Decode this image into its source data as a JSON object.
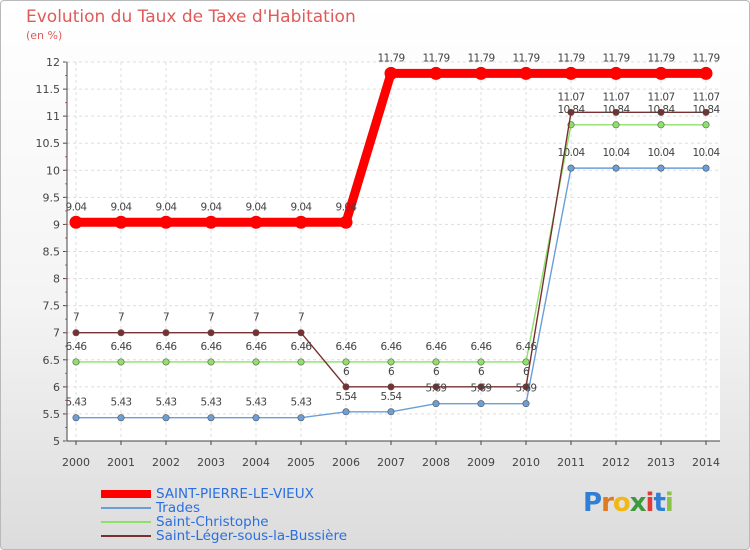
{
  "chart_data": {
    "type": "line",
    "title": "Evolution du Taux de Taxe d'Habitation",
    "subtitle": "(en %)",
    "xlabel": "",
    "ylabel": "",
    "ylim": [
      5,
      12
    ],
    "yticks": [
      "5",
      "5.5",
      "6",
      "6.5",
      "7",
      "7.5",
      "8",
      "8.5",
      "9",
      "9.5",
      "10",
      "10.5",
      "11",
      "11.5",
      "12"
    ],
    "categories": [
      "2000",
      "2001",
      "2002",
      "2003",
      "2004",
      "2005",
      "2006",
      "2007",
      "2008",
      "2009",
      "2010",
      "2011",
      "2012",
      "2013",
      "2014"
    ],
    "grid": true,
    "series": [
      {
        "name": "SAINT-PIERRE-LE-VIEUX",
        "color": "#ff0000",
        "values": [
          9.04,
          9.04,
          9.04,
          9.04,
          9.04,
          9.04,
          9.04,
          11.79,
          11.79,
          11.79,
          11.79,
          11.79,
          11.79,
          11.79,
          11.79
        ],
        "labels": [
          "9.04",
          "9.04",
          "9.04",
          "9.04",
          "9.04",
          "9.04",
          "9.04",
          "11.79",
          "11.79",
          "11.79",
          "11.79",
          "11.79",
          "11.79",
          "11.79",
          "11.79"
        ]
      },
      {
        "name": "Trades",
        "color": "#6a9fd8",
        "values": [
          5.43,
          5.43,
          5.43,
          5.43,
          5.43,
          5.43,
          5.54,
          5.54,
          5.69,
          5.69,
          5.69,
          10.04,
          10.04,
          10.04,
          10.04
        ],
        "labels": [
          "5.43",
          "5.43",
          "5.43",
          "5.43",
          "5.43",
          "5.43",
          "5.54",
          "5.54",
          "5.69",
          "5.69",
          "5.69",
          "10.04",
          "10.04",
          "10.04",
          "10.04"
        ]
      },
      {
        "name": "Saint-Christophe",
        "color": "#8ee06a",
        "values": [
          6.46,
          6.46,
          6.46,
          6.46,
          6.46,
          6.46,
          6.46,
          6.46,
          6.46,
          6.46,
          6.46,
          10.84,
          10.84,
          10.84,
          10.84
        ],
        "labels": [
          "6.46",
          "6.46",
          "6.46",
          "6.46",
          "6.46",
          "6.46",
          "6.46",
          "6.46",
          "6.46",
          "6.46",
          "6.46",
          "10.84",
          "10.84",
          "10.84",
          "10.84"
        ]
      },
      {
        "name": "Saint-Léger-sous-la-Bussière",
        "color": "#7a3030",
        "values": [
          7,
          7,
          7,
          7,
          7,
          7,
          6,
          6,
          6,
          6,
          6,
          11.07,
          11.07,
          11.07,
          11.07
        ],
        "labels": [
          "7",
          "7",
          "7",
          "7",
          "7",
          "7",
          "6",
          "6",
          "6",
          "6",
          "6",
          "11.07",
          "11.07",
          "11.07",
          "11.07"
        ]
      }
    ]
  },
  "legend": {
    "items": [
      {
        "label": "SAINT-PIERRE-LE-VIEUX",
        "color": "#ff0000"
      },
      {
        "label": "Trades",
        "color": "#6a9fd8"
      },
      {
        "label": "Saint-Christophe",
        "color": "#8ee06a"
      },
      {
        "label": "Saint-Léger-sous-la-Bussière",
        "color": "#7a3030"
      }
    ]
  },
  "logo": {
    "letters": [
      "P",
      "r",
      "o",
      "x",
      "i",
      "t",
      "i"
    ],
    "colors": [
      "#2f7fd6",
      "#e07a20",
      "#f2b615",
      "#3f9a3f",
      "#e03a3a",
      "#2f7fd6",
      "#8bc34a"
    ]
  }
}
